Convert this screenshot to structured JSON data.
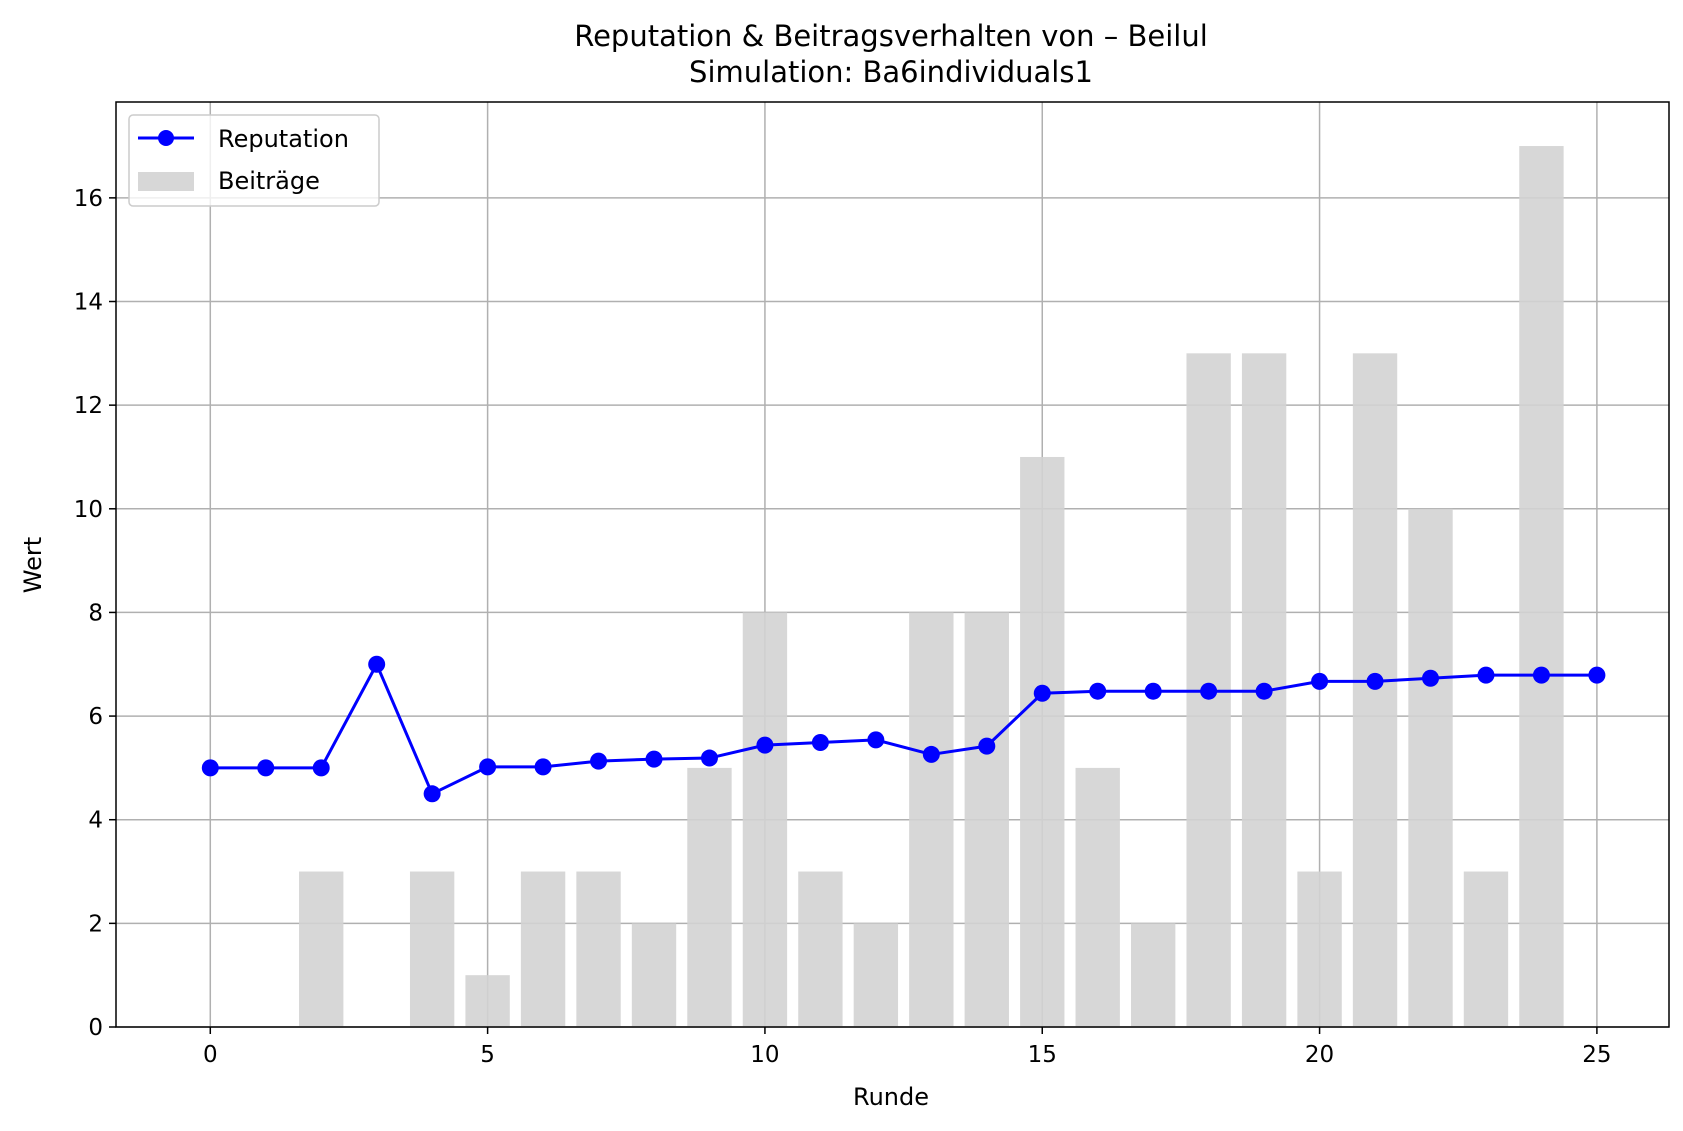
{
  "chart_data": {
    "type": "bar+line",
    "title": "Reputation & Beitragsverhalten von – Beilul",
    "subtitle": "Simulation: Ba6individuals1",
    "xlabel": "Runde",
    "ylabel": "Wert",
    "xlim": [
      -1.7,
      26.3
    ],
    "ylim": [
      0,
      17.85
    ],
    "xticks": [
      0,
      5,
      10,
      15,
      20,
      25
    ],
    "yticks": [
      0,
      2,
      4,
      6,
      8,
      10,
      12,
      14,
      16
    ],
    "grid": true,
    "legend_position": "upper left",
    "series": [
      {
        "name": "Reputation",
        "kind": "line",
        "color": "#0000ff",
        "marker": "circle",
        "x": [
          0,
          1,
          2,
          3,
          4,
          5,
          6,
          7,
          8,
          9,
          10,
          11,
          12,
          13,
          14,
          15,
          16,
          17,
          18,
          19,
          20,
          21,
          22,
          23,
          24,
          25
        ],
        "values": [
          5.0,
          5.0,
          5.0,
          7.0,
          4.5,
          5.02,
          5.02,
          5.13,
          5.17,
          5.19,
          5.44,
          5.49,
          5.54,
          5.26,
          5.42,
          6.44,
          6.48,
          6.48,
          6.48,
          6.48,
          6.67,
          6.67,
          6.73,
          6.79,
          6.79,
          6.79
        ]
      },
      {
        "name": "Beiträge",
        "kind": "bar",
        "color": "#d3d3d3",
        "x": [
          0,
          1,
          2,
          3,
          4,
          5,
          6,
          7,
          8,
          9,
          10,
          11,
          12,
          13,
          14,
          15,
          16,
          17,
          18,
          19,
          20,
          21,
          22,
          23,
          24,
          25
        ],
        "values": [
          0,
          0,
          3,
          0,
          3,
          1,
          3,
          3,
          2,
          5,
          8,
          3,
          2,
          8,
          8,
          11,
          5,
          2,
          13,
          13,
          3,
          13,
          10,
          3,
          17,
          0
        ]
      }
    ]
  }
}
